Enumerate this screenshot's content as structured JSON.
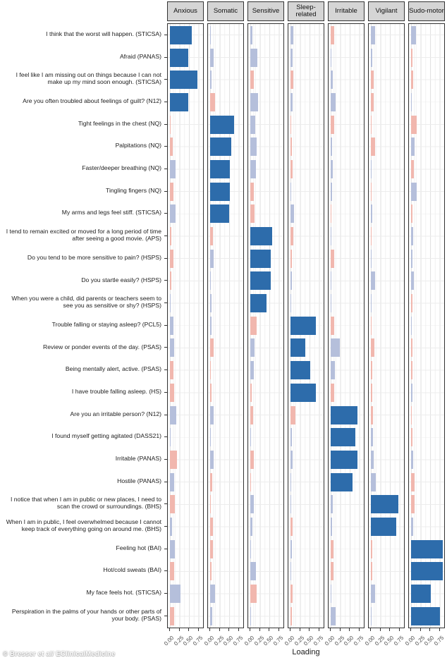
{
  "credit": "© Bresser et al/ EClinicalMedicine",
  "colors": {
    "primary_loading": "#2d6cab",
    "secondary_positive_loading": "#b5bfdb",
    "secondary_negative_loading": "#f1b7ae",
    "facet_strip_bg": "#d5d5d5",
    "panel_border": "#333333"
  },
  "chart_data": {
    "type": "bar",
    "orientation": "horizontal",
    "title": "",
    "xlabel": "Loading",
    "x_ticks": [
      "0.00",
      "0.25",
      "0.50",
      "0.75"
    ],
    "xlim": [
      0,
      0.85
    ],
    "grid": true,
    "facets": [
      "Anxious",
      "Somatic",
      "Sensitive",
      "Sleep-related",
      "Irritable",
      "Vigilant",
      "Sudo-motor"
    ],
    "color_codes": {
      "b": "primary loading (dark blue)",
      "lb": "small positive loading (light blue)",
      "p": "small negative loading (pink)"
    },
    "items": [
      {
        "label": "I think that the worst will happen. (STICSA)",
        "loadings": [
          [
            0.57,
            "b"
          ],
          [
            0.02,
            "lb"
          ],
          [
            0.05,
            "lb"
          ],
          [
            0.07,
            "lb"
          ],
          [
            0.1,
            "p"
          ],
          [
            0.11,
            "lb"
          ],
          [
            0.12,
            "lb"
          ]
        ]
      },
      {
        "label": "Afraid (PANAS)",
        "loadings": [
          [
            0.48,
            "b"
          ],
          [
            0.09,
            "lb"
          ],
          [
            0.19,
            "lb"
          ],
          [
            0.06,
            "lb"
          ],
          [
            0.01,
            "lb"
          ],
          [
            0.04,
            "lb"
          ],
          [
            0.04,
            "p"
          ]
        ]
      },
      {
        "label": "I feel like I am missing out on things because I can not make up my mind soon enough. (STICSA)",
        "loadings": [
          [
            0.72,
            "b"
          ],
          [
            0.03,
            "lb"
          ],
          [
            0.1,
            "p"
          ],
          [
            0.08,
            "p"
          ],
          [
            0.06,
            "lb"
          ],
          [
            0.08,
            "p"
          ],
          [
            0.06,
            "p"
          ]
        ]
      },
      {
        "label": "Are you often troubled about feelings of guilt? (N12)",
        "loadings": [
          [
            0.48,
            "b"
          ],
          [
            0.13,
            "p"
          ],
          [
            0.21,
            "lb"
          ],
          [
            0.06,
            "lb"
          ],
          [
            0.12,
            "lb"
          ],
          [
            0.07,
            "p"
          ],
          [
            0.01,
            "lb"
          ]
        ]
      },
      {
        "label": "Tight feelings in the chest (NQ)",
        "loadings": [
          [
            0.02,
            "p"
          ],
          [
            0.63,
            "b"
          ],
          [
            0.12,
            "lb"
          ],
          [
            0.01,
            "p"
          ],
          [
            0.1,
            "p"
          ],
          [
            0.01,
            "p"
          ],
          [
            0.15,
            "p"
          ]
        ]
      },
      {
        "label": "Palpitations (NQ)",
        "loadings": [
          [
            0.07,
            "p"
          ],
          [
            0.55,
            "b"
          ],
          [
            0.17,
            "lb"
          ],
          [
            0.03,
            "p"
          ],
          [
            0.04,
            "lb"
          ],
          [
            0.11,
            "p"
          ],
          [
            0.09,
            "lb"
          ]
        ]
      },
      {
        "label": "Faster/deeper breathing  (NQ)",
        "loadings": [
          [
            0.15,
            "lb"
          ],
          [
            0.51,
            "b"
          ],
          [
            0.14,
            "lb"
          ],
          [
            0.05,
            "p"
          ],
          [
            0.06,
            "lb"
          ],
          [
            0.01,
            "lb"
          ],
          [
            0.07,
            "p"
          ]
        ]
      },
      {
        "label": "Tingling fingers (NQ)",
        "loadings": [
          [
            0.1,
            "p"
          ],
          [
            0.51,
            "b"
          ],
          [
            0.1,
            "p"
          ],
          [
            0.01,
            "lb"
          ],
          [
            0.03,
            "lb"
          ],
          [
            0.01,
            "p"
          ],
          [
            0.15,
            "lb"
          ]
        ]
      },
      {
        "label": "My arms and legs feel stiff. (STICSA)",
        "loadings": [
          [
            0.15,
            "lb"
          ],
          [
            0.49,
            "b"
          ],
          [
            0.11,
            "p"
          ],
          [
            0.1,
            "lb"
          ],
          [
            0.02,
            "p"
          ],
          [
            0.03,
            "lb"
          ],
          [
            0.03,
            "p"
          ]
        ]
      },
      {
        "label": "I tend to remain excited or moved for a long period of time after seeing a good movie. (APS)",
        "loadings": [
          [
            0.04,
            "p"
          ],
          [
            0.07,
            "p"
          ],
          [
            0.57,
            "b"
          ],
          [
            0.08,
            "p"
          ],
          [
            0.01,
            "lb"
          ],
          [
            0.02,
            "p"
          ],
          [
            0.06,
            "lb"
          ]
        ]
      },
      {
        "label": "Do you tend to be more sensitive to pain? (HSPS)",
        "loadings": [
          [
            0.1,
            "p"
          ],
          [
            0.09,
            "lb"
          ],
          [
            0.53,
            "b"
          ],
          [
            0.03,
            "p"
          ],
          [
            0.09,
            "p"
          ],
          [
            0.01,
            "lb"
          ],
          [
            0.04,
            "lb"
          ]
        ]
      },
      {
        "label": "Do you startle easily? (HSPS)",
        "loadings": [
          [
            0.03,
            "p"
          ],
          [
            0.01,
            "lb"
          ],
          [
            0.53,
            "b"
          ],
          [
            0.03,
            "lb"
          ],
          [
            0.01,
            "lb"
          ],
          [
            0.11,
            "lb"
          ],
          [
            0.07,
            "lb"
          ]
        ]
      },
      {
        "label": "When you were a child, did parents or teachers seem to see you as sensitive or shy? (HSPS)",
        "loadings": [
          [
            0.02,
            "lb"
          ],
          [
            0.03,
            "lb"
          ],
          [
            0.42,
            "b"
          ],
          [
            0.01,
            "lb"
          ],
          [
            0.02,
            "lb"
          ],
          [
            0.02,
            "lb"
          ],
          [
            0.04,
            "p"
          ]
        ]
      },
      {
        "label": "Trouble falling or staying asleep? (PCL5)",
        "loadings": [
          [
            0.09,
            "lb"
          ],
          [
            0.03,
            "lb"
          ],
          [
            0.17,
            "p"
          ],
          [
            0.67,
            "b"
          ],
          [
            0.09,
            "p"
          ],
          [
            0.01,
            "p"
          ],
          [
            0.01,
            "lb"
          ]
        ]
      },
      {
        "label": "Review or ponder events of the day. (PSAS)",
        "loadings": [
          [
            0.11,
            "lb"
          ],
          [
            0.1,
            "p"
          ],
          [
            0.11,
            "lb"
          ],
          [
            0.38,
            "b"
          ],
          [
            0.24,
            "lb"
          ],
          [
            0.09,
            "p"
          ],
          [
            0.03,
            "p"
          ]
        ]
      },
      {
        "label": "Being mentally alert, active. (PSAS)",
        "loadings": [
          [
            0.09,
            "p"
          ],
          [
            0.02,
            "p"
          ],
          [
            0.1,
            "lb"
          ],
          [
            0.52,
            "b"
          ],
          [
            0.11,
            "lb"
          ],
          [
            0.03,
            "p"
          ],
          [
            0.03,
            "p"
          ]
        ]
      },
      {
        "label": "I have trouble falling asleep. (HS)",
        "loadings": [
          [
            0.11,
            "p"
          ],
          [
            0.03,
            "p"
          ],
          [
            0.04,
            "p"
          ],
          [
            0.67,
            "b"
          ],
          [
            0.1,
            "p"
          ],
          [
            0.03,
            "p"
          ],
          [
            0.04,
            "lb"
          ]
        ]
      },
      {
        "label": "Are you an irritable person? (N12)",
        "loadings": [
          [
            0.16,
            "lb"
          ],
          [
            0.09,
            "lb"
          ],
          [
            0.07,
            "p"
          ],
          [
            0.13,
            "p"
          ],
          [
            0.71,
            "b"
          ],
          [
            0.06,
            "p"
          ],
          [
            0.01,
            "p"
          ]
        ]
      },
      {
        "label": "I found myself getting agitated (DASS21)",
        "loadings": [
          [
            0.02,
            "lb"
          ],
          [
            0.01,
            "lb"
          ],
          [
            0.02,
            "lb"
          ],
          [
            0.03,
            "lb"
          ],
          [
            0.64,
            "b"
          ],
          [
            0.05,
            "lb"
          ],
          [
            0.04,
            "p"
          ]
        ]
      },
      {
        "label": "Irritable (PANAS)",
        "loadings": [
          [
            0.19,
            "p"
          ],
          [
            0.1,
            "lb"
          ],
          [
            0.1,
            "p"
          ],
          [
            0.06,
            "lb"
          ],
          [
            0.71,
            "b"
          ],
          [
            0.07,
            "lb"
          ],
          [
            0.05,
            "lb"
          ]
        ]
      },
      {
        "label": "Hostile (PANAS)",
        "loadings": [
          [
            0.11,
            "lb"
          ],
          [
            0.06,
            "p"
          ],
          [
            0.02,
            "p"
          ],
          [
            0.01,
            "lb"
          ],
          [
            0.57,
            "b"
          ],
          [
            0.12,
            "lb"
          ],
          [
            0.09,
            "p"
          ]
        ]
      },
      {
        "label": "I notice that when I am in public or new places, I need to scan the crowd or surroundings. (BHS)",
        "loadings": [
          [
            0.12,
            "p"
          ],
          [
            0.02,
            "p"
          ],
          [
            0.1,
            "lb"
          ],
          [
            0.01,
            "lb"
          ],
          [
            0.06,
            "lb"
          ],
          [
            0.73,
            "b"
          ],
          [
            0.09,
            "p"
          ]
        ]
      },
      {
        "label": "When I am in public, I feel overwhelmed because I cannot keep track of everything going on around me. (BHS)",
        "loadings": [
          [
            0.06,
            "lb"
          ],
          [
            0.07,
            "p"
          ],
          [
            0.05,
            "lb"
          ],
          [
            0.06,
            "p"
          ],
          [
            0.03,
            "lb"
          ],
          [
            0.67,
            "b"
          ],
          [
            0.06,
            "lb"
          ]
        ]
      },
      {
        "label": "Feeling hot  (BAI)",
        "loadings": [
          [
            0.12,
            "lb"
          ],
          [
            0.08,
            "p"
          ],
          [
            0.02,
            "lb"
          ],
          [
            0.03,
            "lb"
          ],
          [
            0.08,
            "p"
          ],
          [
            0.04,
            "p"
          ],
          [
            0.85,
            "b"
          ]
        ]
      },
      {
        "label": "Hot/cold sweats  (BAI)",
        "loadings": [
          [
            0.11,
            "p"
          ],
          [
            0.04,
            "p"
          ],
          [
            0.14,
            "lb"
          ],
          [
            0.02,
            "lb"
          ],
          [
            0.07,
            "p"
          ],
          [
            0.03,
            "p"
          ],
          [
            0.95,
            "b"
          ]
        ]
      },
      {
        "label": "My face feels hot. (STICSA)",
        "loadings": [
          [
            0.28,
            "lb"
          ],
          [
            0.13,
            "lb"
          ],
          [
            0.17,
            "p"
          ],
          [
            0.05,
            "p"
          ],
          [
            0.01,
            "lb"
          ],
          [
            0.11,
            "lb"
          ],
          [
            0.52,
            "b"
          ]
        ]
      },
      {
        "label": "Perspiration in the palms of your hands or other parts of your body. (PSAS)",
        "loadings": [
          [
            0.11,
            "p"
          ],
          [
            0.05,
            "lb"
          ],
          [
            0.01,
            "lb"
          ],
          [
            0.03,
            "p"
          ],
          [
            0.13,
            "lb"
          ],
          [
            0.01,
            "lb"
          ],
          [
            0.76,
            "b"
          ]
        ]
      }
    ]
  }
}
